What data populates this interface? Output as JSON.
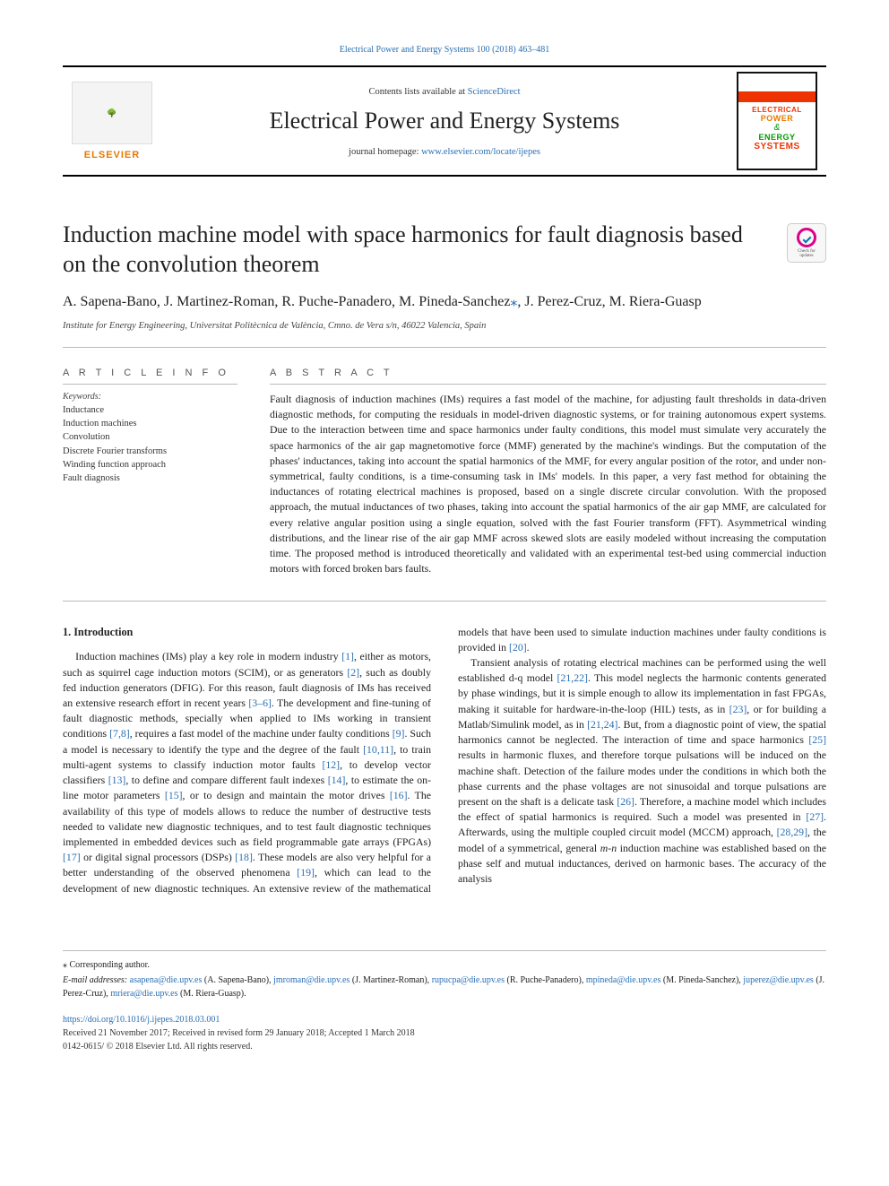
{
  "top_link": {
    "journal_ref": "Electrical Power and Energy Systems 100 (2018) 463–481",
    "url_text": "Electrical Power and Energy Systems 100 (2018) 463–481"
  },
  "masthead": {
    "contents_pre": "Contents lists available at ",
    "contents_link": "ScienceDirect",
    "journal_name": "Electrical Power and Energy Systems",
    "homepage_pre": "journal homepage: ",
    "homepage_link": "www.elsevier.com/locate/ijepes",
    "publisher_label": "ELSEVIER",
    "cover": {
      "l1": "ELECTRICAL",
      "l2": "POWER",
      "amp": "&",
      "l3": "ENERGY",
      "l4": "SYSTEMS"
    }
  },
  "title": "Induction machine model with space harmonics for fault diagnosis based on the convolution theorem",
  "check_updates": {
    "l1": "Check for",
    "l2": "updates"
  },
  "authors_raw": "A. Sapena-Bano, J. Martinez-Roman, R. Puche-Panadero, M. Pineda-Sanchez",
  "corr_mark": "⁎",
  "authors_tail": ", J. Perez-Cruz, M. Riera-Guasp",
  "affiliation": "Institute for Energy Engineering, Universitat Politècnica de València, Cmno. de Vera s/n, 46022 Valencia, Spain",
  "info": {
    "head": "A R T I C L E  I N F O",
    "kw_label": "Keywords:",
    "keywords": [
      "Inductance",
      "Induction machines",
      "Convolution",
      "Discrete Fourier transforms",
      "Winding function approach",
      "Fault diagnosis"
    ]
  },
  "abstract": {
    "head": "A B S T R A C T",
    "text": "Fault diagnosis of induction machines (IMs) requires a fast model of the machine, for adjusting fault thresholds in data-driven diagnostic methods, for computing the residuals in model-driven diagnostic systems, or for training autonomous expert systems. Due to the interaction between time and space harmonics under faulty conditions, this model must simulate very accurately the space harmonics of the air gap magnetomotive force (MMF) generated by the machine's windings. But the computation of the phases' inductances, taking into account the spatial harmonics of the MMF, for every angular position of the rotor, and under non-symmetrical, faulty conditions, is a time-consuming task in IMs' models. In this paper, a very fast method for obtaining the inductances of rotating electrical machines is proposed, based on a single discrete circular convolution. With the proposed approach, the mutual inductances of two phases, taking into account the spatial harmonics of the air gap MMF, are calculated for every relative angular position using a single equation, solved with the fast Fourier transform (FFT). Asymmetrical winding distributions, and the linear rise of the air gap MMF across skewed slots are easily modeled without increasing the computation time. The proposed method is introduced theoretically and validated with an experimental test-bed using commercial induction motors with forced broken bars faults."
  },
  "section1": {
    "head": "1. Introduction",
    "p1a": "Induction machines (IMs) play a key role in modern industry ",
    "c1": "[1]",
    "p1b": ", either as motors, such as squirrel cage induction motors (SCIM), or as generators ",
    "c2": "[2]",
    "p1c": ", such as doubly fed induction generators (DFIG). For this reason, fault diagnosis of IMs has received an extensive research effort in recent years ",
    "c3": "[3–6]",
    "p1d": ". The development and fine-tuning of fault diagnostic methods, specially when applied to IMs working in transient conditions ",
    "c4": "[7,8]",
    "p1e": ", requires a fast model of the machine under faulty conditions ",
    "c5": "[9]",
    "p1f": ". Such a model is necessary to identify the type and the degree of the fault ",
    "c6": "[10,11]",
    "p1g": ", to train multi-agent systems to classify induction motor faults ",
    "c7": "[12]",
    "p1h": ", to develop vector classifiers ",
    "c8": "[13]",
    "p1i": ", to define and compare different fault indexes ",
    "c9": "[14]",
    "p1j": ", to estimate the on-line motor parameters ",
    "c10": "[15]",
    "p1k": ", or to design and maintain the motor drives ",
    "c11": "[16]",
    "p1l": ". The availability of this type of models allows to reduce the number of destructive tests needed to validate new diagnostic techniques, and to test fault diagnostic techniques implemented in embedded devices such as field programmable gate arrays (FPGAs) ",
    "c12": "[17]",
    "p1m": " or digital signal processors (DSPs) ",
    "c13": "[18]",
    "p1n": ". These models are also very helpful for a better understanding of the observed phenomena ",
    "c14": "[19]",
    "p1o": ", which can lead to the development of new diagnostic techniques. An extensive review of the mathematical models that have been used to simulate induction machines under faulty conditions is provided in ",
    "c15": "[20]",
    "p1p": ".",
    "p2a": "Transient analysis of rotating electrical machines can be performed using the well established d-q model ",
    "c16": "[21,22]",
    "p2b": ". This model neglects the harmonic contents generated by phase windings, but it is simple enough to allow its implementation in fast FPGAs, making it suitable for hardware-in-the-loop (HIL) tests, as in ",
    "c17": "[23]",
    "p2c": ", or for building a Matlab/Simulink model, as in ",
    "c18": "[21,24]",
    "p2d": ". But, from a diagnostic point of view, the spatial harmonics cannot be neglected. The interaction of time and space harmonics ",
    "c19": "[25]",
    "p2e": " results in harmonic fluxes, and therefore torque pulsations will be induced on the machine shaft. Detection of the failure modes under the conditions in which both the phase currents and the phase voltages are not sinusoidal and torque pulsations are present on the shaft is a delicate task ",
    "c20": "[26]",
    "p2f": ". Therefore, a machine model which includes the effect of spatial harmonics is required. Such a model was presented in ",
    "c21": "[27]",
    "p2g": ". Afterwards, using the multiple coupled circuit model (MCCM) approach, ",
    "c22": "[28,29]",
    "p2h": ", the model of a symmetrical, general ",
    "mn": "m-n",
    "p2i": " induction machine was established based on the phase self and mutual inductances, derived on harmonic bases. The accuracy of the analysis"
  },
  "footnotes": {
    "corr": "⁎ Corresponding author.",
    "email_label": "E-mail addresses: ",
    "emails": [
      {
        "addr": "asapena@die.upv.es",
        "who": "(A. Sapena-Bano)"
      },
      {
        "addr": "jmroman@die.upv.es",
        "who": "(J. Martinez-Roman)"
      },
      {
        "addr": "rupucpa@die.upv.es",
        "who": "(R. Puche-Panadero)"
      },
      {
        "addr": "mpineda@die.upv.es",
        "who": "(M. Pineda-Sanchez)"
      },
      {
        "addr": "juperez@die.upv.es",
        "who": "(J. Perez-Cruz)"
      },
      {
        "addr": "mriera@die.upv.es",
        "who": "(M. Riera-Guasp)."
      }
    ],
    "doi": "https://doi.org/10.1016/j.ijepes.2018.03.001",
    "received": "Received 21 November 2017; Received in revised form 29 January 2018; Accepted 1 March 2018",
    "copyright": "0142-0615/ © 2018 Elsevier Ltd. All rights reserved."
  },
  "colors": {
    "link": "#2a6fb5",
    "elsevier_orange": "#e97800",
    "rule": "#bbbbbb",
    "text": "#222222"
  }
}
